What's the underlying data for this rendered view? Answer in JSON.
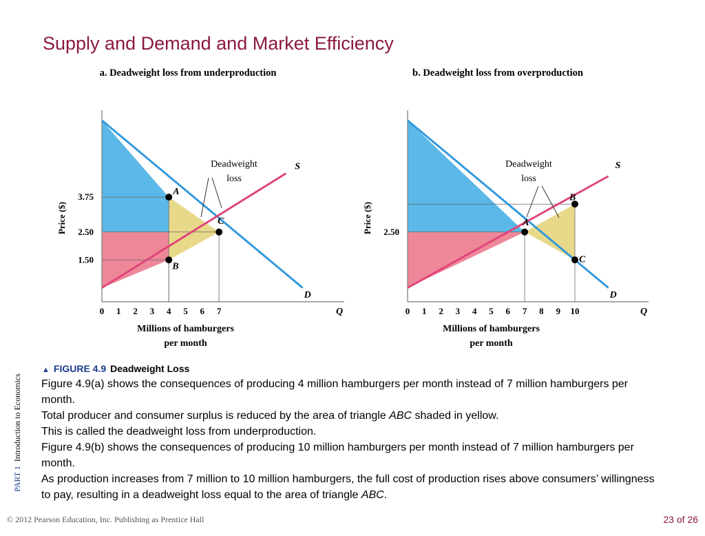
{
  "slide": {
    "title": "Supply and Demand and Market Efficiency",
    "side_part": "PART 1",
    "side_text": "Introduction to Economics",
    "footer": "© 2012 Pearson Education, Inc. Publishing as Prentice Hall",
    "page": "23 of 26"
  },
  "caption": {
    "figure_number": "FIGURE 4.9",
    "figure_title": "Deadweight Loss",
    "paragraphs": [
      "Figure 4.9(a) shows the consequences of producing 4 million hamburgers per month instead of 7 million hamburgers per month.",
      "Total producer and consumer surplus is reduced by the area of triangle ABC shaded in yellow.",
      "This is called the deadweight loss from underproduction.",
      "Figure 4.9(b) shows the consequences of producing 10 million hamburgers per month instead of 7 million hamburgers per month.",
      "As production increases from 7 million to 10 million hamburgers, the full cost of production rises above consumers’ willingness to pay, resulting in a deadweight loss equal to the area of triangle ABC."
    ],
    "italic_term": "ABC"
  },
  "colors": {
    "demand_line": "#3399dd",
    "supply_line": "#e0457b",
    "consumer_surplus": "#5bb8e8",
    "producer_surplus": "#ee8899",
    "deadweight_loss": "#e8d98a",
    "title": "#8b1a3c",
    "accent_blue": "#1a3a8c"
  },
  "chart_data": [
    {
      "type": "line",
      "panel": "a",
      "title": "a. Deadweight loss from underproduction",
      "xlabel": "Millions of hamburgers per month",
      "xlabel_lines": [
        "Millions of hamburgers",
        "per month"
      ],
      "ylabel": "Price ($)",
      "x_axis_end_label": "Q",
      "xlim": [
        0,
        12
      ],
      "ylim": [
        0,
        6
      ],
      "x_ticks": [
        "0",
        "1",
        "2",
        "3",
        "4",
        "5",
        "6",
        "7"
      ],
      "y_ticks": [
        {
          "label": "3.75",
          "value": 3.75
        },
        {
          "label": "2.50",
          "value": 2.5
        },
        {
          "label": "1.50",
          "value": 1.5
        }
      ],
      "series": [
        {
          "name": "D",
          "points": [
            [
              0,
              6.5
            ],
            [
              12,
              0.5
            ]
          ]
        },
        {
          "name": "S",
          "points": [
            [
              0,
              0.5
            ],
            [
              11,
              4.6
            ]
          ]
        }
      ],
      "points": [
        {
          "label": "A",
          "x": 4,
          "y": 3.75
        },
        {
          "label": "B",
          "x": 4,
          "y": 1.5
        },
        {
          "label": "C",
          "x": 7,
          "y": 2.5
        }
      ],
      "annotation": "Deadweight loss",
      "annotation_lines": [
        "Deadweight",
        "loss"
      ],
      "shaded_regions": [
        {
          "fill": "consumer_surplus",
          "polygon": [
            [
              0,
              6.5
            ],
            [
              4,
              3.75
            ],
            [
              4,
              2.5
            ],
            [
              0,
              2.5
            ]
          ]
        },
        {
          "fill": "producer_surplus",
          "polygon": [
            [
              0,
              2.5
            ],
            [
              4,
              2.5
            ],
            [
              4,
              1.5
            ],
            [
              0,
              0.5
            ]
          ]
        },
        {
          "fill": "deadweight_loss",
          "polygon": [
            [
              4,
              3.75
            ],
            [
              7,
              2.5
            ],
            [
              4,
              1.5
            ]
          ]
        }
      ],
      "guides": [
        {
          "x": 4,
          "y": 3.75
        },
        {
          "x": 4,
          "y": 1.5
        },
        {
          "x": 7,
          "y": 2.5
        }
      ]
    },
    {
      "type": "line",
      "panel": "b",
      "title": "b. Deadweight loss from overproduction",
      "xlabel": "Millions of hamburgers per month",
      "xlabel_lines": [
        "Millions of hamburgers",
        "per month"
      ],
      "ylabel": "Price ($)",
      "x_axis_end_label": "Q",
      "xlim": [
        0,
        14
      ],
      "ylim": [
        0,
        6
      ],
      "x_ticks": [
        "0",
        "1",
        "2",
        "3",
        "4",
        "5",
        "6",
        "7",
        "8",
        "9",
        "10"
      ],
      "y_ticks": [
        {
          "label": "2.50",
          "value": 2.5
        }
      ],
      "series": [
        {
          "name": "D",
          "points": [
            [
              0,
              6.5
            ],
            [
              12,
              0.5
            ]
          ]
        },
        {
          "name": "S",
          "points": [
            [
              0,
              0.5
            ],
            [
              12,
              4.5
            ]
          ]
        }
      ],
      "points": [
        {
          "label": "A",
          "x": 7,
          "y": 2.5
        },
        {
          "label": "B",
          "x": 10,
          "y": 3.5
        },
        {
          "label": "C",
          "x": 10,
          "y": 1.5
        }
      ],
      "annotation": "Deadweight loss",
      "annotation_lines": [
        "Deadweight",
        "loss"
      ],
      "shaded_regions": [
        {
          "fill": "consumer_surplus",
          "polygon": [
            [
              0,
              6.5
            ],
            [
              7,
              2.5
            ],
            [
              0,
              2.5
            ]
          ]
        },
        {
          "fill": "producer_surplus",
          "polygon": [
            [
              0,
              2.5
            ],
            [
              7,
              2.5
            ],
            [
              0,
              0.5
            ]
          ]
        },
        {
          "fill": "deadweight_loss",
          "polygon": [
            [
              7,
              2.5
            ],
            [
              10,
              3.5
            ],
            [
              10,
              1.5
            ]
          ]
        }
      ],
      "guides": [
        {
          "x": 7,
          "y": 2.5
        },
        {
          "x": 10,
          "y": 3.5
        }
      ]
    }
  ]
}
